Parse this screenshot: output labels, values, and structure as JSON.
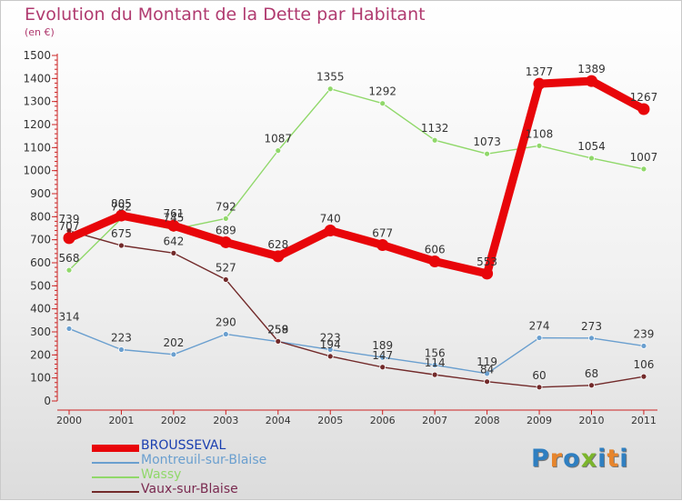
{
  "title": "Evolution du Montant de la Dette par Habitant",
  "subtitle": "(en €)",
  "logo": {
    "letters": [
      "P",
      "r",
      "o",
      "x",
      "i",
      "t",
      "i"
    ],
    "colors": [
      "#2f7fc1",
      "#e7852c",
      "#2f7fc1",
      "#7bb52c",
      "#2f7fc1",
      "#e7852c",
      "#2f7fc1"
    ]
  },
  "chart_data": {
    "type": "line",
    "x": [
      "2000",
      "2001",
      "2002",
      "2003",
      "2004",
      "2005",
      "2006",
      "2007",
      "2008",
      "2009",
      "2010",
      "2011"
    ],
    "ylim": [
      0,
      1500
    ],
    "yticks": [
      "0",
      "100",
      "200",
      "300",
      "400",
      "500",
      "600",
      "700",
      "800",
      "900",
      "1000",
      "1100",
      "1200",
      "1300",
      "1400",
      "1500"
    ],
    "grid": false,
    "legend_position": "bottom-left",
    "series": [
      {
        "name": "BROUSSEVAL",
        "color": "#e8060a",
        "label_color": "#1a3fb0",
        "values": [
          707,
          805,
          761,
          689,
          628,
          740,
          677,
          606,
          553,
          1377,
          1389,
          1267
        ]
      },
      {
        "name": "Montreuil-sur-Blaise",
        "color": "#6a9fcf",
        "label_color": "#6a9fcf",
        "values": [
          314,
          223,
          202,
          290,
          258,
          223,
          189,
          156,
          119,
          274,
          273,
          239
        ]
      },
      {
        "name": "Wassy",
        "color": "#90d86a",
        "label_color": "#90d86a",
        "values": [
          568,
          792,
          745,
          792,
          1087,
          1355,
          1292,
          1132,
          1073,
          1108,
          1054,
          1007
        ]
      },
      {
        "name": "Vaux-sur-Blaise",
        "color": "#722a2a",
        "label_color": "#7a2a50",
        "values": [
          739,
          675,
          642,
          527,
          259,
          194,
          147,
          114,
          84,
          60,
          68,
          106
        ]
      }
    ]
  }
}
